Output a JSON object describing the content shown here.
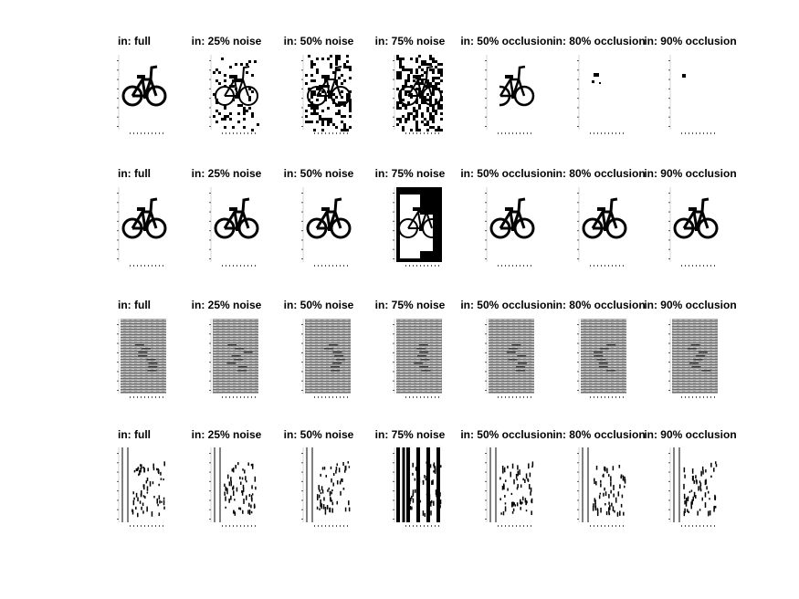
{
  "chart_data": {
    "type": "image-grid",
    "rows": 4,
    "cols": 7,
    "col_titles": [
      "in: full",
      "in: 25% noise",
      "in: 50% noise",
      "in: 75% noise",
      "in: 50% occlusion",
      "in: 80% occlusion",
      "in: 90% occlusion"
    ],
    "row_contents": [
      "bicycle input",
      "bicycle recall",
      "grey texture",
      "stripe pattern"
    ],
    "noise_levels": [
      0,
      0.25,
      0.5,
      0.75
    ],
    "occlusion_levels": [
      0.5,
      0.8,
      0.9
    ],
    "colors": {
      "ink": "#000000",
      "grey": "#9a9a9a",
      "background": "#ffffff"
    }
  }
}
